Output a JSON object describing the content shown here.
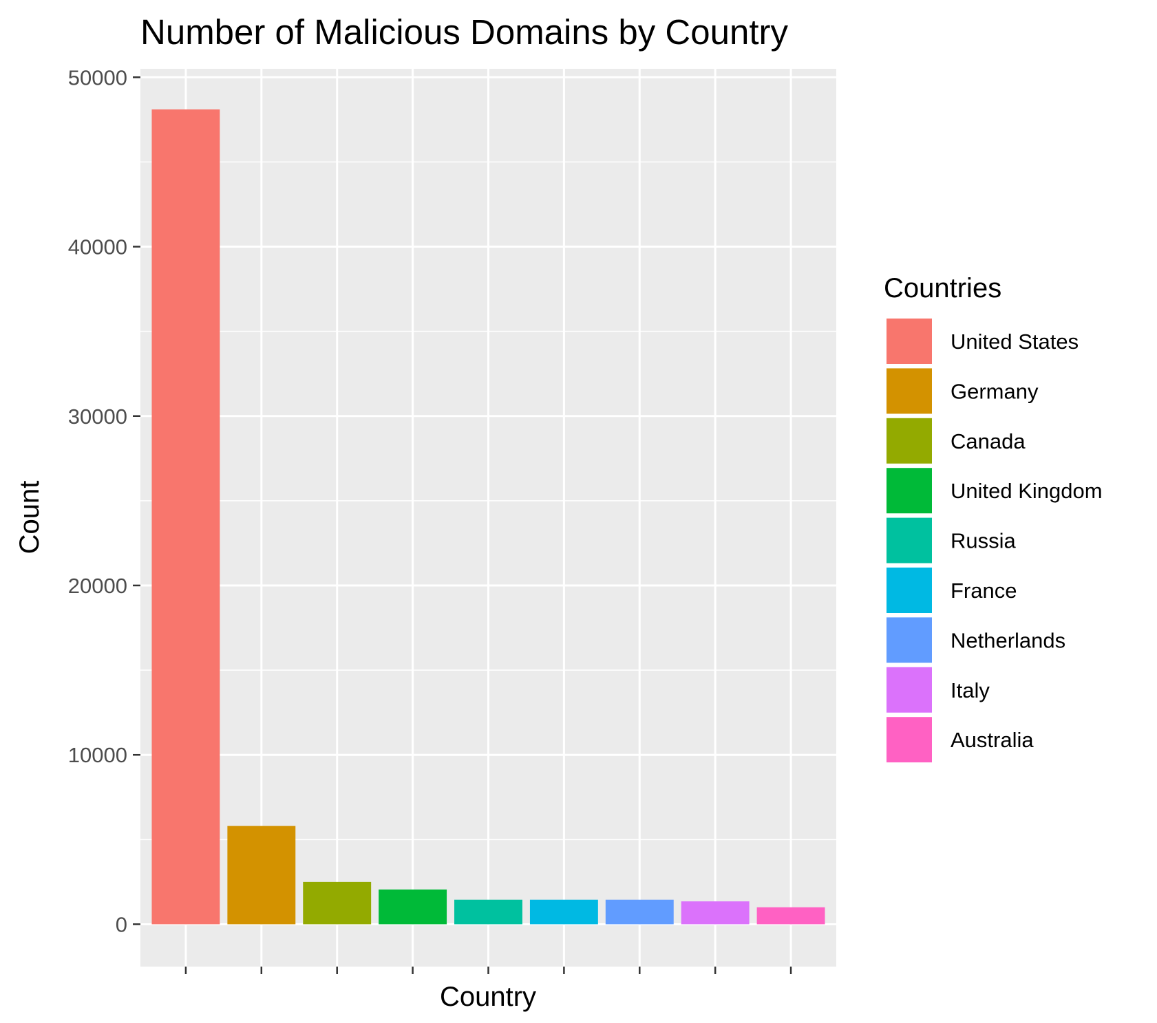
{
  "chart_data": {
    "type": "bar",
    "title": "Number of Malicious Domains by Country",
    "xlabel": "Country",
    "ylabel": "Count",
    "categories": [
      "United States",
      "Germany",
      "Canada",
      "United Kingdom",
      "Russia",
      "France",
      "Netherlands",
      "Italy",
      "Australia"
    ],
    "values": [
      48100,
      5800,
      2500,
      2050,
      1450,
      1450,
      1450,
      1350,
      1000
    ],
    "colors": [
      "#F8766D",
      "#D39200",
      "#93AA00",
      "#00BA38",
      "#00C19F",
      "#00B9E3",
      "#619CFF",
      "#DB72FB",
      "#FF61C3"
    ],
    "ylim": [
      -2500,
      50500
    ],
    "yticks": [
      0,
      10000,
      20000,
      30000,
      40000,
      50000
    ],
    "yticklabels": [
      "0",
      "10000",
      "20000",
      "30000",
      "40000",
      "50000"
    ],
    "x_tick_labels_shown": false,
    "grid": true,
    "panel_background": "#EBEBEB",
    "legend": {
      "title": "Countries",
      "position": "right"
    }
  }
}
